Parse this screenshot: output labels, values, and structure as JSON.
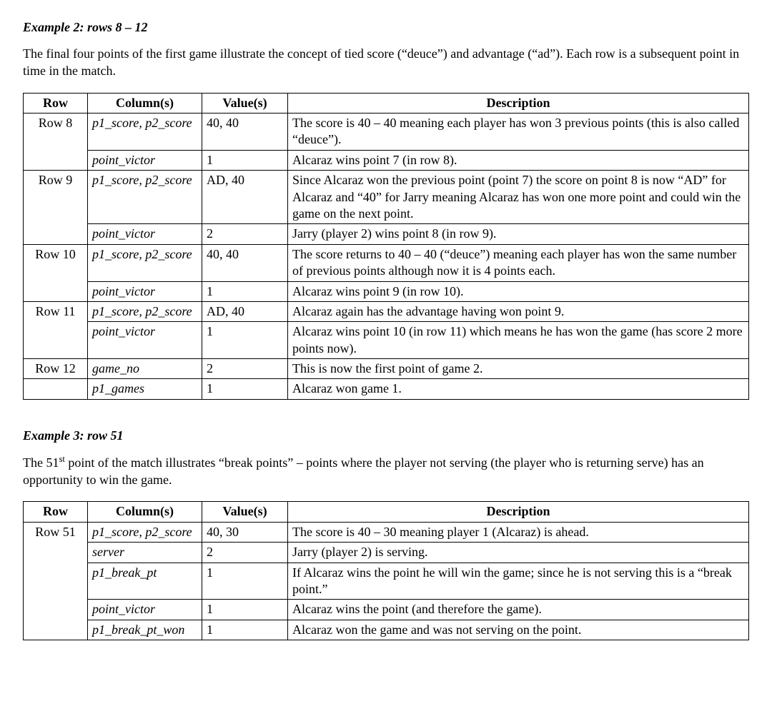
{
  "ex2": {
    "heading": "Example 2:  rows 8 – 12",
    "intro": "The final four points of the first game illustrate the concept of tied score (“deuce”) and advantage (“ad”). Each row is a subsequent point in time in the match.",
    "headers": {
      "row": "Row",
      "cols": "Column(s)",
      "vals": "Value(s)",
      "desc": "Description"
    },
    "rows": [
      {
        "row": "Row 8",
        "rowspan": 2,
        "col": "p1_score, p2_score",
        "val": "40, 40",
        "desc": "The score is 40 – 40 meaning each player has won 3 previous points (this is also called “deuce”)."
      },
      {
        "col": "point_victor",
        "val": "1",
        "desc": "Alcaraz wins point 7 (in row 8)."
      },
      {
        "row": "Row 9",
        "rowspan": 2,
        "col": "p1_score, p2_score",
        "val": "AD, 40",
        "desc": "Since Alcaraz won the previous point (point 7) the score on point 8 is now “AD” for Alcaraz and “40” for Jarry meaning Alcaraz has won one more point and could win the game on the next point."
      },
      {
        "col": "point_victor",
        "val": "2",
        "desc": "Jarry (player 2) wins point 8 (in row 9)."
      },
      {
        "row": "Row 10",
        "rowspan": 2,
        "col": "p1_score, p2_score",
        "val": "40, 40",
        "desc": "The score returns to 40 – 40 (“deuce”) meaning each player has won the same number of previous points although now it is 4 points each."
      },
      {
        "col": "point_victor",
        "val": "1",
        "desc": "Alcaraz wins point 9 (in row 10)."
      },
      {
        "row": "Row 11",
        "rowspan": 2,
        "col": "p1_score, p2_score",
        "val": "AD, 40",
        "desc": "Alcaraz again has the advantage having won point 9."
      },
      {
        "col": "point_victor",
        "val": "1",
        "desc": "Alcaraz wins point 10 (in row 11) which means he has won the game (has score 2 more points now)."
      },
      {
        "row": "Row 12",
        "rowspan": 1,
        "col": "game_no",
        "val": "2",
        "desc": "This is now the first point of game 2."
      },
      {
        "row": "",
        "rowspan": 1,
        "col": "p1_games",
        "val": "1",
        "desc": "Alcaraz won game 1."
      }
    ]
  },
  "ex3": {
    "heading": "Example 3:  row 51",
    "intro_pre": "The 51",
    "intro_sup": "st",
    "intro_post": " point of the match illustrates “break points” – points where the player not serving (the player who is returning serve) has an opportunity to win the game.",
    "headers": {
      "row": "Row",
      "cols": "Column(s)",
      "vals": "Value(s)",
      "desc": "Description"
    },
    "rows": [
      {
        "row": "Row 51",
        "rowspan": 5,
        "col": "p1_score, p2_score",
        "val": "40, 30",
        "desc": "The score is 40 – 30 meaning player 1 (Alcaraz) is ahead."
      },
      {
        "col": "server",
        "val": "2",
        "desc": "Jarry (player 2) is serving."
      },
      {
        "col": "p1_break_pt",
        "val": "1",
        "desc": "If Alcaraz wins the point he will win the game; since he is not serving this is a “break point.”"
      },
      {
        "col": "point_victor",
        "val": "1",
        "desc": "Alcaraz wins the point (and therefore the game)."
      },
      {
        "col": "p1_break_pt_won",
        "val": "1",
        "desc": "Alcaraz won the game and was not serving on the point."
      }
    ]
  }
}
